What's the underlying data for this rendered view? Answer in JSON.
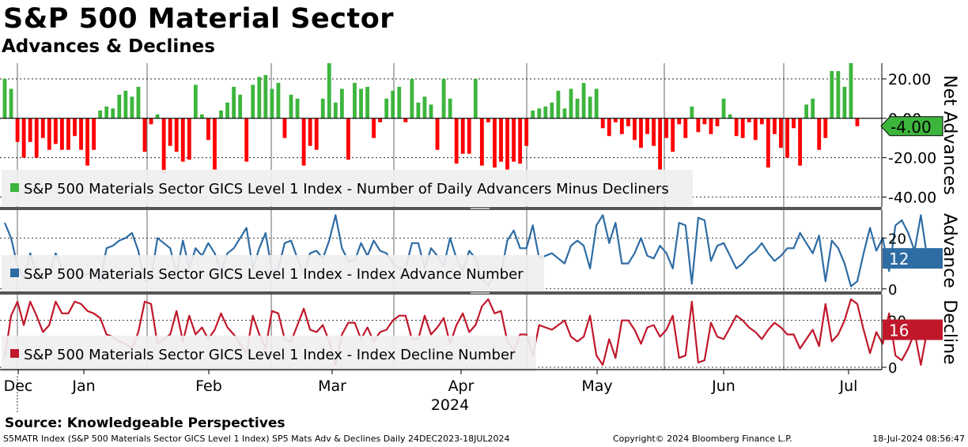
{
  "title": "S&P 500 Material Sector",
  "subtitle": "Advances & Declines",
  "source": "Source: Knowledgeable Perspectives",
  "footer": {
    "left": "S5MATR Index (S&P 500 Materials Sector GICS Level 1 Index) SP5 Mats Adv & Declines  Daily 24DEC2023-18JUL2024",
    "center": "Copyright© 2024 Bloomberg Finance L.P.",
    "right": "18-Jul-2024 08:56:47"
  },
  "colors": {
    "positive": "#3db53d",
    "negative": "#ff0000",
    "advance": "#2e6ca4",
    "decline": "#c0182b",
    "grid": "#000000",
    "legend_bg": "#efefef",
    "divider": "#555555"
  },
  "chart_data": [
    {
      "type": "bar",
      "name": "net-advances",
      "ylabel": "Net Advances",
      "legend": "S&P 500 Materials Sector GICS Level 1 Index - Number of Daily Advancers Minus Decliners",
      "yticks": [
        "20.00",
        "0.00",
        "-20.00",
        "-40.00"
      ],
      "ytick_values": [
        20,
        0,
        -20,
        -40
      ],
      "ylim": [
        -45,
        28
      ],
      "last_value": "-4.00",
      "values": [
        20,
        15,
        -12,
        -20,
        -12,
        -20,
        -10,
        -16,
        -13,
        -16,
        -16,
        -9,
        -16,
        -24,
        -16,
        4,
        6,
        5,
        12,
        14,
        11,
        16,
        -17,
        -3,
        2,
        -28,
        -14,
        -17,
        -22,
        -21,
        17,
        2,
        -11,
        -26,
        4,
        8,
        16,
        12,
        -22,
        17,
        21,
        22,
        15,
        18,
        -10,
        12,
        10,
        -24,
        -14,
        -16,
        10,
        28,
        8,
        15,
        -21,
        18,
        15,
        16,
        -10,
        -2,
        10,
        14,
        16,
        -2,
        20,
        8,
        11,
        7,
        -16,
        20,
        10,
        -23,
        -18,
        -18,
        20,
        -24,
        -2,
        -25,
        -22,
        -26,
        -22,
        -23,
        -14,
        4,
        5,
        6,
        8,
        14,
        5,
        15,
        10,
        18,
        11,
        15,
        -5,
        -9,
        -2,
        -8,
        -4,
        -11,
        -15,
        -8,
        -14,
        -26,
        -10,
        -17,
        -3,
        -10,
        6,
        -7,
        -3,
        -8,
        -4,
        10,
        2,
        -9,
        -10,
        -2,
        -11,
        -3,
        -25,
        -8,
        -15,
        -20,
        -5,
        -24,
        7,
        10,
        -16,
        -10,
        24,
        24,
        16,
        28,
        -4
      ]
    },
    {
      "type": "line",
      "name": "advance-number",
      "ylabel": "Advance",
      "legend": "S&P 500 Materials Sector GICS Level 1 Index - Index Advance Number",
      "yticks": [
        "20",
        "0"
      ],
      "ytick_values": [
        20,
        0
      ],
      "ylim": [
        -1,
        31
      ],
      "last_value": "12",
      "values": [
        26,
        20,
        9,
        4,
        14,
        6,
        6,
        6,
        14,
        8,
        6,
        6,
        5,
        6,
        6,
        3,
        16,
        17,
        19,
        20,
        22,
        15,
        3,
        4,
        20,
        18,
        16,
        6,
        19,
        8,
        16,
        13,
        18,
        14,
        7,
        14,
        16,
        20,
        24,
        8,
        16,
        22,
        7,
        8,
        18,
        19,
        12,
        6,
        14,
        15,
        12,
        19,
        29,
        16,
        11,
        11,
        18,
        13,
        19,
        15,
        14,
        10,
        8,
        8,
        18,
        18,
        8,
        16,
        13,
        9,
        20,
        12,
        7,
        15,
        12,
        4,
        1,
        7,
        6,
        19,
        23,
        16,
        16,
        25,
        12,
        13,
        14,
        12,
        10,
        17,
        19,
        17,
        8,
        25,
        29,
        18,
        26,
        10,
        10,
        14,
        20,
        13,
        12,
        17,
        14,
        8,
        26,
        25,
        2,
        28,
        27,
        11,
        17,
        18,
        13,
        8,
        10,
        13,
        15,
        18,
        14,
        11,
        13,
        16,
        16,
        22,
        18,
        14,
        21,
        3,
        19,
        16,
        10,
        1,
        3,
        14,
        24,
        15,
        20,
        7,
        25,
        27,
        22,
        15,
        29,
        12
      ]
    },
    {
      "type": "line",
      "name": "decline-number",
      "ylabel": "Decline",
      "legend": "S&P 500 Materials Sector GICS Level 1 Index - Index Decline Number",
      "yticks": [
        "20",
        "0"
      ],
      "ytick_values": [
        20,
        0
      ],
      "ylim": [
        -1,
        31
      ],
      "last_value": "16",
      "values": [
        4,
        22,
        28,
        18,
        28,
        22,
        15,
        18,
        28,
        23,
        23,
        28,
        27,
        24,
        23,
        21,
        14,
        13,
        11,
        10,
        8,
        15,
        28,
        27,
        10,
        12,
        14,
        24,
        11,
        22,
        14,
        17,
        12,
        16,
        23,
        17,
        14,
        10,
        6,
        22,
        14,
        8,
        24,
        23,
        12,
        11,
        18,
        25,
        16,
        15,
        18,
        11,
        1,
        14,
        19,
        19,
        12,
        17,
        11,
        15,
        16,
        20,
        22,
        22,
        12,
        12,
        22,
        14,
        17,
        21,
        10,
        18,
        23,
        15,
        18,
        26,
        29,
        23,
        24,
        11,
        7,
        14,
        14,
        5,
        18,
        17,
        16,
        18,
        20,
        13,
        11,
        13,
        22,
        5,
        1,
        12,
        4,
        20,
        20,
        16,
        10,
        17,
        18,
        13,
        16,
        22,
        4,
        5,
        28,
        2,
        3,
        19,
        13,
        12,
        17,
        22,
        20,
        17,
        15,
        12,
        16,
        19,
        17,
        14,
        14,
        8,
        12,
        16,
        9,
        27,
        11,
        14,
        20,
        29,
        27,
        16,
        6,
        15,
        10,
        23,
        5,
        3,
        8,
        15,
        1,
        16
      ]
    }
  ],
  "x_axis": {
    "months": [
      "Dec",
      "Jan",
      "Feb",
      "Mar",
      "Apr",
      "May",
      "Jun",
      "Jul"
    ],
    "year": "2024"
  }
}
